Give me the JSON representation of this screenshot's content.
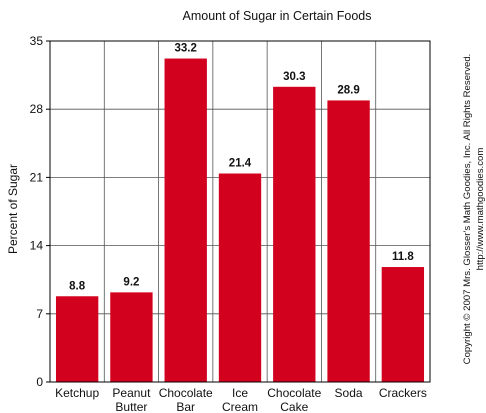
{
  "chart_data": {
    "type": "bar",
    "title": "Amount of Sugar in Certain Foods",
    "xlabel": "",
    "ylabel": "Percent of Sugar",
    "ylim": [
      0,
      35
    ],
    "yticks": [
      0,
      7,
      14,
      21,
      28,
      35
    ],
    "categories": [
      [
        "Ketchup"
      ],
      [
        "Peanut",
        "Butter"
      ],
      [
        "Chocolate",
        "Bar"
      ],
      [
        "Ice",
        "Cream"
      ],
      [
        "Chocolate",
        "Cake"
      ],
      [
        "Soda"
      ],
      [
        "Crackers"
      ]
    ],
    "values": [
      8.8,
      9.2,
      33.2,
      21.4,
      30.3,
      28.9,
      11.8
    ],
    "value_labels": [
      "8.8",
      "9.2",
      "33.2",
      "21.4",
      "30.3",
      "28.9",
      "11.8"
    ],
    "bar_color": "#d2021e",
    "grid": true,
    "legend": "none"
  },
  "copyright": {
    "line1": "Copyright © 2007 Mrs. Glosser's Math Goodies, Inc. All Rights Reserved.",
    "line2": "http://www.mathgoodies.com"
  }
}
